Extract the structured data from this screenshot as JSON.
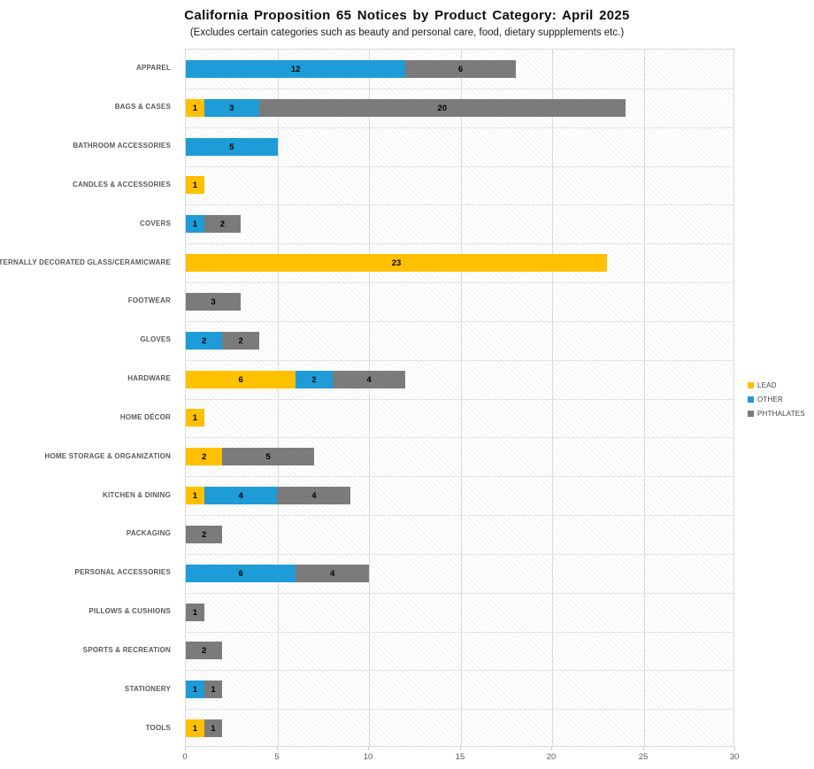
{
  "chart_data": {
    "type": "bar",
    "orientation": "horizontal",
    "stacked": true,
    "title": "California Proposition 65 Notices by Product Category: April 2025",
    "subtitle": "(Excludes certain categories such as beauty and personal care, food, dietary suppplements etc.)",
    "categories": [
      "APPAREL",
      "BAGS & CASES",
      "BATHROOM ACCESSORIES",
      "CANDLES & ACCESSORIES",
      "COVERS",
      "EXTERNALLY DECORATED GLASS/CERAMICWARE",
      "FOOTWEAR",
      "GLOVES",
      "HARDWARE",
      "HOME DÉCOR",
      "HOME STORAGE & ORGANIZATION",
      "KITCHEN & DINING",
      "PACKAGING",
      "PERSONAL ACCESSORIES",
      "PILLOWS & CUSHIONS",
      "SPORTS & RECREATION",
      "STATIONERY",
      "TOOLS"
    ],
    "series": [
      {
        "name": "LEAD",
        "color": "#FFC000",
        "values": [
          0,
          1,
          0,
          1,
          0,
          23,
          0,
          0,
          6,
          1,
          2,
          1,
          0,
          0,
          0,
          0,
          0,
          1
        ]
      },
      {
        "name": "OTHER",
        "color": "#1E9CD7",
        "values": [
          12,
          3,
          5,
          0,
          1,
          0,
          0,
          2,
          2,
          0,
          0,
          4,
          0,
          6,
          0,
          0,
          1,
          0
        ]
      },
      {
        "name": "PHTHALATES",
        "color": "#7B7B7B",
        "values": [
          6,
          20,
          0,
          0,
          2,
          0,
          3,
          2,
          4,
          0,
          5,
          4,
          2,
          4,
          1,
          2,
          1,
          1
        ]
      }
    ],
    "xlabel": "",
    "ylabel": "",
    "xlim": [
      0,
      30
    ],
    "xticks": [
      0,
      5,
      10,
      15,
      20,
      25,
      30
    ],
    "grid": true,
    "legend_position": "right",
    "data_labels": true,
    "plot_background": "#ffffff",
    "gridline_color": "#d9d9d9",
    "label_color": "#595959"
  }
}
